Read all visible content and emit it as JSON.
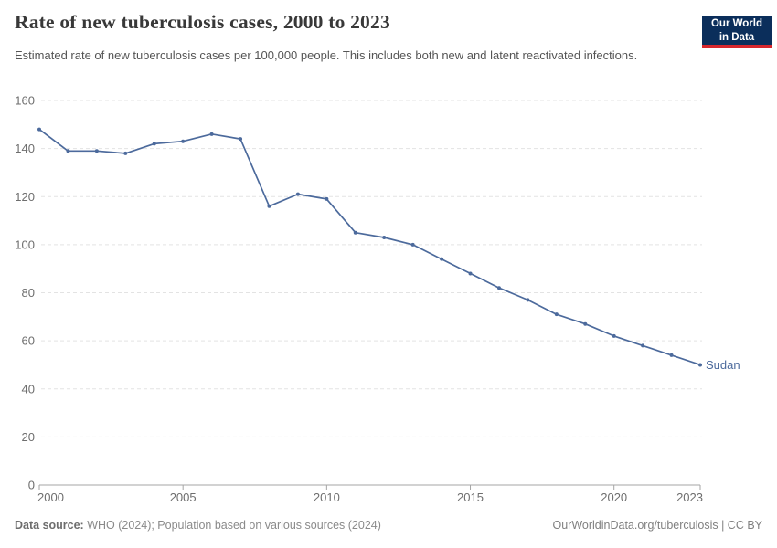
{
  "header": {
    "title": "Rate of new tuberculosis cases, 2000 to 2023",
    "subtitle": "Estimated rate of new tuberculosis cases per 100,000 people. This includes both new and latent reactivated infections."
  },
  "logo": {
    "line1": "Our World",
    "line2": "in Data",
    "bg_color": "#0b2e5b",
    "accent_color": "#d7262c"
  },
  "chart_data": {
    "type": "line",
    "title": "Rate of new tuberculosis cases, 2000 to 2023",
    "x": [
      2000,
      2001,
      2002,
      2003,
      2004,
      2005,
      2006,
      2007,
      2008,
      2009,
      2010,
      2011,
      2012,
      2013,
      2014,
      2015,
      2016,
      2017,
      2018,
      2019,
      2020,
      2021,
      2022,
      2023
    ],
    "series": [
      {
        "name": "Sudan",
        "color": "#4c6a9c",
        "values": [
          148,
          139,
          139,
          138,
          142,
          143,
          146,
          144,
          116,
          121,
          119,
          105,
          103,
          100,
          94,
          88,
          82,
          77,
          71,
          67,
          62,
          58,
          54,
          50
        ]
      }
    ],
    "xlabel": "",
    "ylabel": "",
    "xlim": [
      2000,
      2023
    ],
    "ylim": [
      0,
      160
    ],
    "yticks": [
      0,
      20,
      40,
      60,
      80,
      100,
      120,
      140,
      160
    ],
    "xticks": [
      2000,
      2005,
      2010,
      2015,
      2020,
      2023
    ],
    "grid": "horizontal-dashed",
    "legend_position": "end-of-line-label",
    "end_label": "Sudan"
  },
  "chart_style": {
    "line_color": "#4c6a9c",
    "gridline_color": "#e3e3e3",
    "axis_color": "#a5a5a5",
    "tick_label_color": "#6e6e6e"
  },
  "footer": {
    "datasource_label": "Data source:",
    "datasource_text": " WHO (2024); Population based on various sources (2024)",
    "link_text": "OurWorldinData.org/tuberculosis | CC BY"
  }
}
